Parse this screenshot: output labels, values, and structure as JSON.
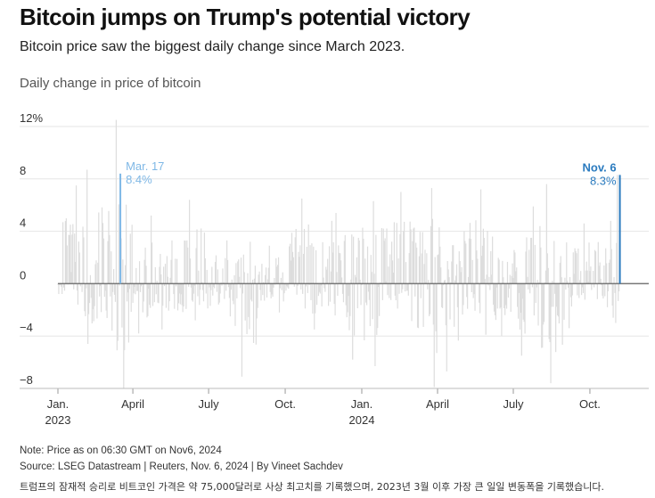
{
  "header": {
    "title": "Bitcoin jumps on Trump's potential victory",
    "subtitle": "Bitcoin price saw the biggest daily change since March 2023.",
    "chart_label": "Daily change in price of bitcoin"
  },
  "footer": {
    "note": "Note: Price as on 06:30 GMT on Nov6, 2024",
    "source": "Source: LSEG Datastream | Reuters, Nov. 6, 2024 | By Vineet Sachdev",
    "caption": "트럼프의 잠재적 승리로 비트코인 가격은 약 75,000달러로 사상 최고치를 기록했으며, 2023년 3월 이후 가장 큰 일일 변동폭을 기록했습니다."
  },
  "colors": {
    "bars": "#dddddd",
    "highlight_mar": "#7fb8e6",
    "highlight_nov": "#2b7bbf",
    "zero_line": "#777777",
    "grid": "#e6e6e6"
  },
  "chart_data": {
    "type": "bar",
    "title": "Daily change in price of bitcoin",
    "xlabel": "",
    "ylabel": "",
    "ylim": [
      -8,
      12
    ],
    "y_ticks": [
      {
        "value": 12,
        "label": "12%"
      },
      {
        "value": 8,
        "label": "8"
      },
      {
        "value": 4,
        "label": "4"
      },
      {
        "value": 0,
        "label": "0"
      },
      {
        "value": -4,
        "label": "−4"
      },
      {
        "value": -8,
        "label": "−8"
      }
    ],
    "x_start": "2023-01-01",
    "x_end": "2024-11-30",
    "x_ticks": [
      {
        "date": "2023-01-01",
        "label": "Jan.",
        "sublabel": "2023"
      },
      {
        "date": "2023-04-01",
        "label": "April",
        "sublabel": ""
      },
      {
        "date": "2023-07-01",
        "label": "July",
        "sublabel": ""
      },
      {
        "date": "2023-10-01",
        "label": "Oct.",
        "sublabel": ""
      },
      {
        "date": "2024-01-01",
        "label": "Jan.",
        "sublabel": "2024"
      },
      {
        "date": "2024-04-01",
        "label": "April",
        "sublabel": ""
      },
      {
        "date": "2024-07-01",
        "label": "July",
        "sublabel": ""
      },
      {
        "date": "2024-10-01",
        "label": "Oct.",
        "sublabel": ""
      }
    ],
    "highlights": [
      {
        "date": "2023-03-17",
        "value": 8.4,
        "label": "Mar. 17",
        "value_label": "8.4%",
        "color": "#7fb8e6",
        "align": "start"
      },
      {
        "date": "2024-11-06",
        "value": 8.3,
        "label": "Nov. 6",
        "value_label": "8.3%",
        "color": "#2b7bbf",
        "align": "end"
      }
    ],
    "series": [
      {
        "name": "Daily change (%)",
        "monthly_range": [
          {
            "month": "2023-01",
            "max": 7.5,
            "min": -1.6
          },
          {
            "month": "2023-02",
            "max": 8.7,
            "min": -4.6
          },
          {
            "month": "2023-03",
            "max": 12.5,
            "min": -8.0
          },
          {
            "month": "2023-04",
            "max": 5.2,
            "min": -3.8
          },
          {
            "month": "2023-05",
            "max": 3.3,
            "min": -3.5
          },
          {
            "month": "2023-06",
            "max": 6.4,
            "min": -2.8
          },
          {
            "month": "2023-07",
            "max": 3.3,
            "min": -2.5
          },
          {
            "month": "2023-08",
            "max": 3.2,
            "min": -7.1
          },
          {
            "month": "2023-09",
            "max": 2.9,
            "min": -2.2
          },
          {
            "month": "2023-10",
            "max": 6.5,
            "min": -1.9
          },
          {
            "month": "2023-11",
            "max": 4.8,
            "min": -3.5
          },
          {
            "month": "2023-12",
            "max": 5.4,
            "min": -5.8
          },
          {
            "month": "2024-01",
            "max": 6.3,
            "min": -6.3
          },
          {
            "month": "2024-02",
            "max": 7.0,
            "min": -1.9
          },
          {
            "month": "2024-03",
            "max": 7.3,
            "min": -7.9
          },
          {
            "month": "2024-04",
            "max": 4.3,
            "min": -6.7
          },
          {
            "month": "2024-05",
            "max": 7.2,
            "min": -3.9
          },
          {
            "month": "2024-06",
            "max": 3.6,
            "min": -4.0
          },
          {
            "month": "2024-07",
            "max": 5.9,
            "min": -5.5
          },
          {
            "month": "2024-08",
            "max": 7.6,
            "min": -7.6
          },
          {
            "month": "2024-09",
            "max": 4.6,
            "min": -3.4
          },
          {
            "month": "2024-10",
            "max": 4.8,
            "min": -2.6
          },
          {
            "month": "2024-11",
            "max": 8.3,
            "min": -3.0
          }
        ]
      }
    ]
  }
}
